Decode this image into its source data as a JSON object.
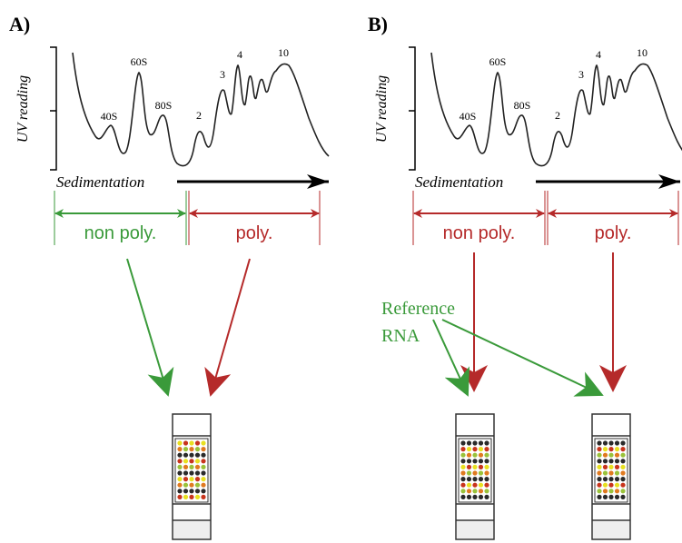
{
  "panels": [
    {
      "label": "A)",
      "y_axis_label": "UV reading",
      "x_axis_label": "Sedimentation",
      "peak_labels": [
        "40S",
        "60S",
        "80S",
        "2",
        "3",
        "4",
        "10"
      ],
      "fractions": [
        {
          "label": "non poly.",
          "color": "#3a9a3a"
        },
        {
          "label": "poly.",
          "color": "#b52a2a"
        }
      ]
    },
    {
      "label": "B)",
      "y_axis_label": "UV reading",
      "x_axis_label": "Sedimentation",
      "peak_labels": [
        "40S",
        "60S",
        "80S",
        "2",
        "3",
        "4",
        "10"
      ],
      "fractions": [
        {
          "label": "non poly.",
          "color": "#b52a2a"
        },
        {
          "label": "poly.",
          "color": "#b52a2a"
        }
      ],
      "reference_label": [
        "Reference",
        "RNA"
      ]
    }
  ]
}
